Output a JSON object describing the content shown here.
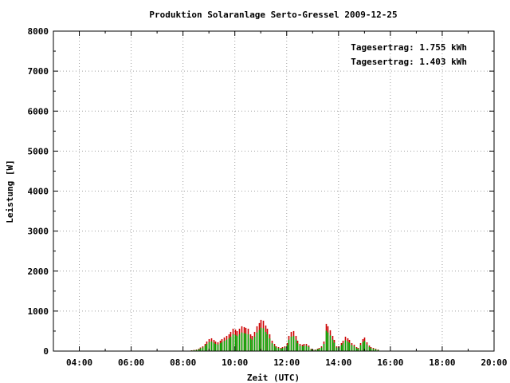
{
  "chart_data": {
    "type": "bar",
    "title": "Produktion Solaranlage Serto-Gressel 2009-12-25",
    "xlabel": "Zeit (UTC)",
    "ylabel": "Leistung [W]",
    "ylim": [
      0,
      8000
    ],
    "xlim": [
      "03:00",
      "20:00"
    ],
    "x_ticks": [
      "04:00",
      "06:00",
      "08:00",
      "10:00",
      "12:00",
      "14:00",
      "16:00",
      "18:00",
      "20:00"
    ],
    "y_ticks": [
      "0",
      "1000",
      "2000",
      "3000",
      "4000",
      "5000",
      "6000",
      "7000",
      "8000"
    ],
    "grid": true,
    "legend_position": "top-right",
    "annotations": [
      {
        "text": "Tagesertrag: 1.755 kWh",
        "color": "#cc0000"
      },
      {
        "text": "Tagesertrag: 1.403 kWh",
        "color": "#00aa00"
      }
    ],
    "x": [
      "08:20",
      "08:25",
      "08:30",
      "08:35",
      "08:40",
      "08:45",
      "08:50",
      "08:55",
      "09:00",
      "09:05",
      "09:10",
      "09:15",
      "09:20",
      "09:25",
      "09:30",
      "09:35",
      "09:40",
      "09:45",
      "09:50",
      "09:55",
      "10:00",
      "10:05",
      "10:10",
      "10:15",
      "10:20",
      "10:25",
      "10:30",
      "10:35",
      "10:40",
      "10:45",
      "10:50",
      "10:55",
      "11:00",
      "11:05",
      "11:10",
      "11:15",
      "11:20",
      "11:25",
      "11:30",
      "11:35",
      "11:40",
      "11:45",
      "11:50",
      "11:55",
      "12:00",
      "12:05",
      "12:10",
      "12:15",
      "12:20",
      "12:25",
      "12:30",
      "12:35",
      "12:40",
      "12:45",
      "12:50",
      "12:55",
      "13:00",
      "13:05",
      "13:10",
      "13:15",
      "13:20",
      "13:25",
      "13:30",
      "13:35",
      "13:40",
      "13:45",
      "13:50",
      "13:55",
      "14:00",
      "14:05",
      "14:10",
      "14:15",
      "14:20",
      "14:25",
      "14:30",
      "14:35",
      "14:40",
      "14:45",
      "14:50",
      "14:55",
      "15:00",
      "15:05",
      "15:10",
      "15:15",
      "15:20",
      "15:25",
      "15:30"
    ],
    "series": [
      {
        "color": "#cc0000",
        "values": [
          20,
          30,
          40,
          60,
          90,
          120,
          180,
          240,
          300,
          320,
          280,
          240,
          220,
          260,
          300,
          340,
          380,
          420,
          480,
          560,
          540,
          500,
          560,
          620,
          600,
          580,
          560,
          420,
          380,
          480,
          620,
          700,
          780,
          760,
          640,
          560,
          420,
          260,
          180,
          120,
          100,
          80,
          100,
          120,
          200,
          380,
          480,
          500,
          380,
          260,
          180,
          160,
          180,
          180,
          140,
          60,
          40,
          40,
          60,
          80,
          120,
          240,
          680,
          620,
          520,
          380,
          280,
          120,
          120,
          200,
          260,
          360,
          320,
          280,
          200,
          160,
          100,
          80,
          200,
          300,
          340,
          220,
          140,
          100,
          80,
          60,
          40
        ]
      },
      {
        "color": "#00aa00",
        "values": [
          15,
          22,
          30,
          45,
          68,
          90,
          135,
          180,
          225,
          240,
          210,
          180,
          165,
          195,
          225,
          255,
          285,
          315,
          360,
          420,
          405,
          375,
          420,
          465,
          450,
          435,
          420,
          315,
          285,
          360,
          465,
          525,
          585,
          570,
          480,
          420,
          315,
          195,
          135,
          90,
          75,
          60,
          75,
          90,
          150,
          285,
          360,
          375,
          285,
          195,
          135,
          120,
          135,
          135,
          105,
          45,
          30,
          30,
          45,
          60,
          90,
          180,
          510,
          465,
          390,
          285,
          210,
          90,
          90,
          150,
          195,
          270,
          240,
          210,
          150,
          120,
          75,
          60,
          150,
          225,
          255,
          165,
          105,
          75,
          60,
          45,
          30
        ]
      }
    ]
  }
}
